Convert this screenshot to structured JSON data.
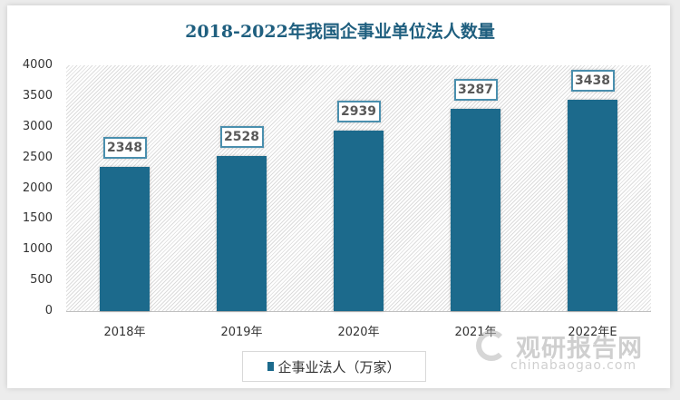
{
  "chart_data": {
    "type": "bar",
    "title": "2018-2022年我国企事业单位法人数量",
    "categories": [
      "2018年",
      "2019年",
      "2020年",
      "2021年",
      "2022年E"
    ],
    "series": [
      {
        "name": "企事业法人（万家）",
        "values": [
          2348,
          2528,
          2939,
          3287,
          3438
        ],
        "color": "#1c6a8c"
      }
    ],
    "xlabel": "",
    "ylabel": "",
    "ylim": [
      0,
      4000
    ],
    "yticks": [
      "0",
      "500",
      "1000",
      "1500",
      "2000",
      "2500",
      "3000",
      "3500",
      "4000"
    ],
    "data_labels": [
      "2348",
      "2528",
      "2939",
      "3287",
      "3438"
    ],
    "grid": false,
    "legend_position": "bottom"
  },
  "legend": {
    "label": "企事业法人（万家）"
  },
  "watermark": {
    "cn": "观研报告网",
    "en": "chinabaogao.com"
  }
}
